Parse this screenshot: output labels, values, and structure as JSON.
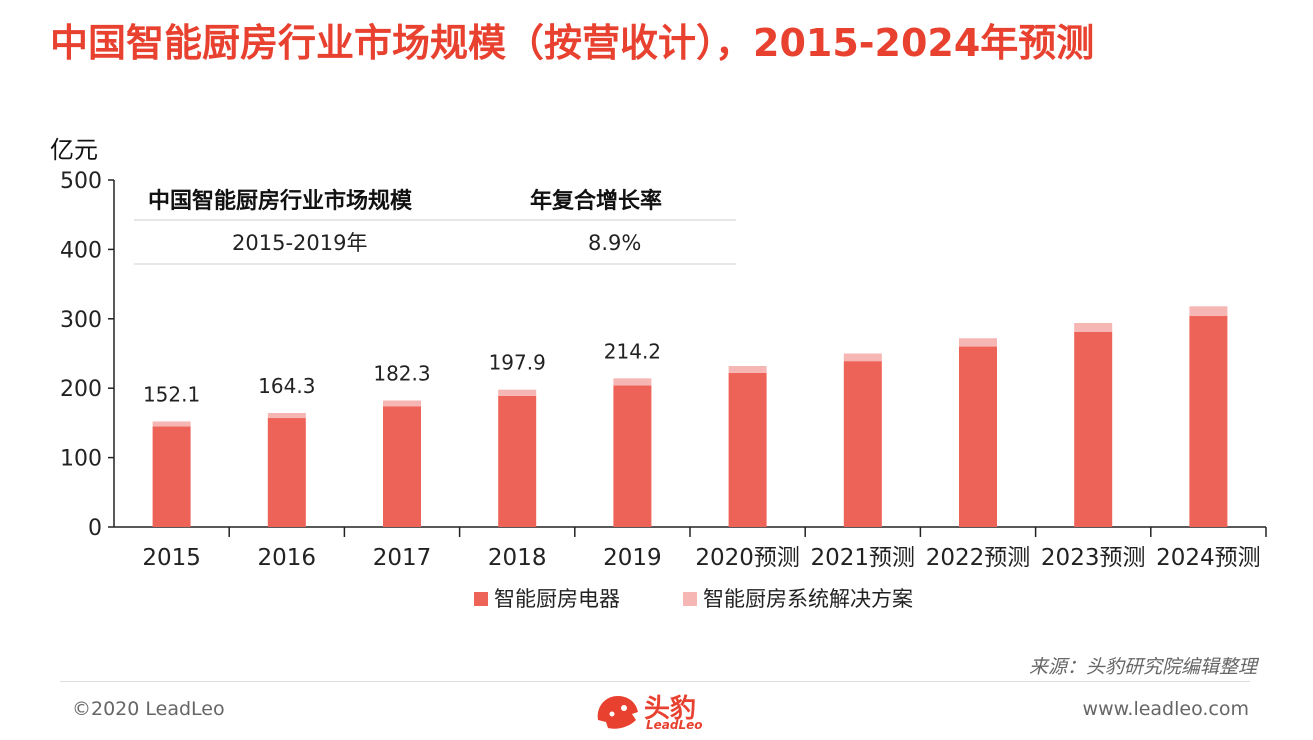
{
  "title": "中国智能厨房行业市场规模（按营收计），2015-2024年预测",
  "unit_label": "亿元",
  "source": "来源：头豹研究院编辑整理",
  "footer": {
    "copyright": "©2020 LeadLeo",
    "website": "www.leadleo.com",
    "logo_text": "头豹",
    "logo_sub": "LeadLeo"
  },
  "colors": {
    "title": "#e8412f",
    "appliance": "#ee6357",
    "solution": "#f6b6b4"
  },
  "chart_data": {
    "type": "bar",
    "stacked": true,
    "categories": [
      "2015",
      "2016",
      "2017",
      "2018",
      "2019",
      "2020预测",
      "2021预测",
      "2022预测",
      "2023预测",
      "2024预测"
    ],
    "series": [
      {
        "name": "智能厨房电器",
        "values": [
          145,
          157,
          174,
          189,
          204,
          222,
          239,
          260,
          281,
          304
        ]
      },
      {
        "name": "智能厨房系统解决方案",
        "values": [
          7.1,
          7.3,
          8.3,
          8.9,
          10.2,
          10,
          11,
          12,
          13,
          14
        ]
      }
    ],
    "data_labels": [
      "152.1",
      "164.3",
      "182.3",
      "197.9",
      "214.2",
      "",
      "",
      "",
      "",
      ""
    ],
    "ylim": [
      0,
      500
    ],
    "yticks": [
      "0",
      "100",
      "200",
      "300",
      "400",
      "500"
    ],
    "legend_position": "bottom",
    "grid": false
  },
  "inset_table": {
    "headers": [
      "中国智能厨房行业市场规模",
      "年复合增长率"
    ],
    "rows": [
      [
        "2015-2019年",
        "8.9%"
      ]
    ]
  }
}
